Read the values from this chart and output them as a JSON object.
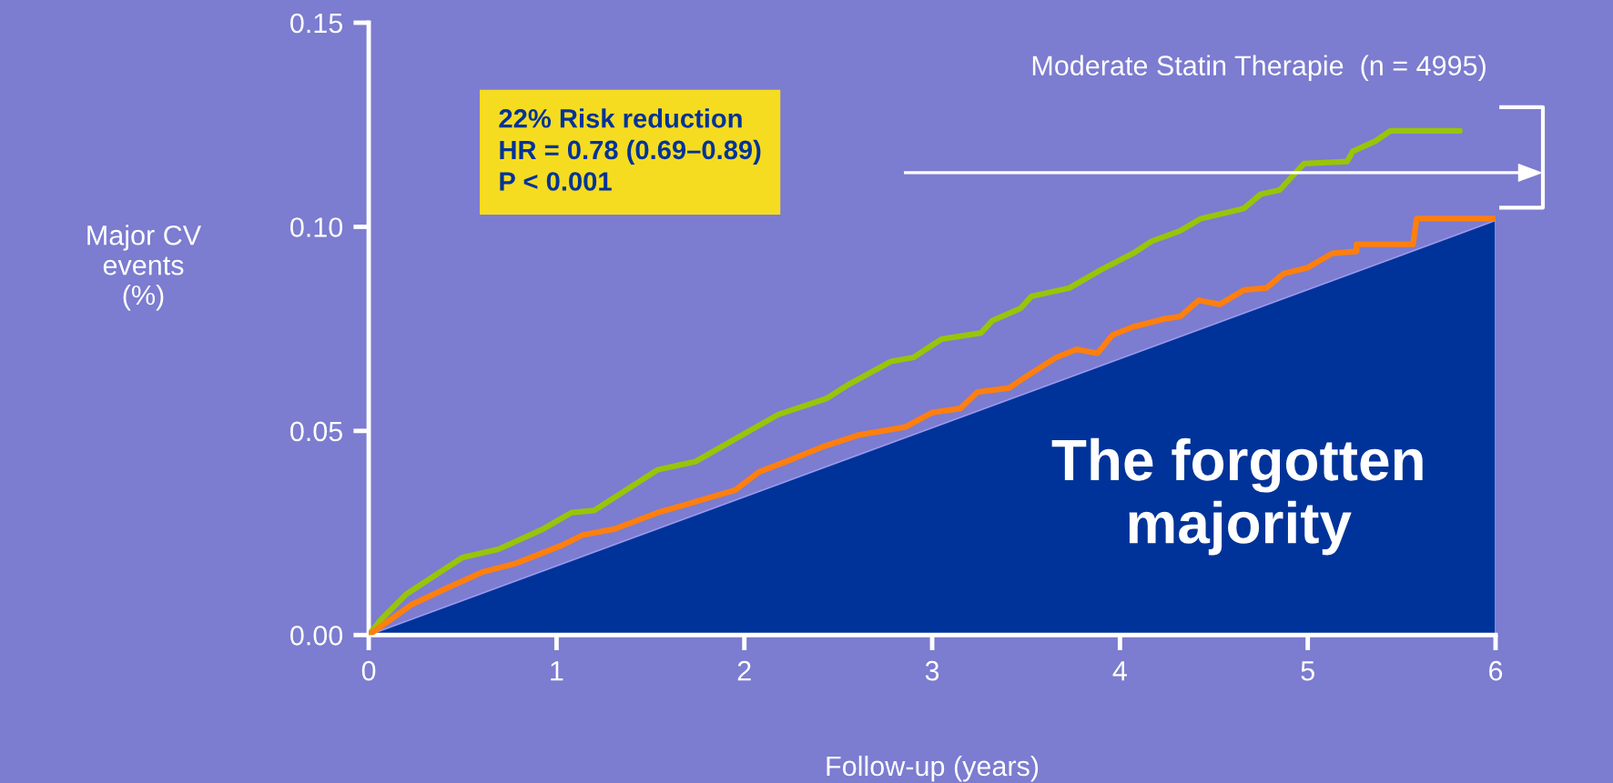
{
  "chart_data": {
    "type": "line",
    "xlabel": "Follow-up (years)",
    "ylabel": "Major CV\nevents\n(%)",
    "annotations": [
      "22% Risk reduction\nHR = 0.78 (0.69–0.89)\nP < 0.001",
      "The forgotten\nmajority"
    ],
    "xlim": [
      0,
      6
    ],
    "xticks": [
      0,
      1,
      2,
      3,
      4,
      5,
      6
    ],
    "ylim": [
      0,
      0.15
    ],
    "yticks": [
      {
        "value": 0,
        "label": "0.00"
      },
      {
        "value": 0.05,
        "label": "0.05"
      },
      {
        "value": 0.1,
        "label": "0.10"
      },
      {
        "value": 0.15,
        "label": "0.15"
      }
    ],
    "grid": false,
    "legend": false,
    "marker": "none",
    "line_style": "solid",
    "series": [
      {
        "name": "Moderate Statin Therapie  (n = 4995)",
        "color": "#99c409",
        "x": [
          0,
          0.06,
          0.2,
          0.5,
          0.69,
          0.93,
          1.08,
          1.2,
          1.37,
          1.54,
          1.74,
          1.97,
          2.18,
          2.44,
          2.56,
          2.78,
          2.9,
          3.05,
          3.26,
          3.32,
          3.47,
          3.53,
          3.73,
          3.9,
          4.07,
          4.17,
          4.32,
          4.43,
          4.66,
          4.75,
          4.85,
          4.98,
          5.21,
          5.24,
          5.36,
          5.44,
          5.81
        ],
        "values": [
          0,
          0.0035,
          0.01,
          0.019,
          0.021,
          0.026,
          0.03,
          0.0305,
          0.0355,
          0.0405,
          0.0425,
          0.0485,
          0.054,
          0.058,
          0.0615,
          0.067,
          0.068,
          0.0725,
          0.074,
          0.077,
          0.08,
          0.083,
          0.085,
          0.0895,
          0.0935,
          0.0965,
          0.099,
          0.102,
          0.1045,
          0.108,
          0.109,
          0.1155,
          0.116,
          0.1185,
          0.121,
          0.1235,
          0.1235
        ]
      },
      {
        "color": "#ff7f0e",
        "x": [
          0,
          0.23,
          0.44,
          0.61,
          0.78,
          1.03,
          1.14,
          1.31,
          1.54,
          1.69,
          1.95,
          2.08,
          2.25,
          2.41,
          2.61,
          2.86,
          3.0,
          3.15,
          3.24,
          3.41,
          3.49,
          3.66,
          3.77,
          3.88,
          3.96,
          4.07,
          4.24,
          4.32,
          4.42,
          4.53,
          4.66,
          4.78,
          4.87,
          5.0,
          5.13,
          5.26,
          5.26,
          5.56,
          5.58,
          6.0
        ],
        "values": [
          0,
          0.0075,
          0.012,
          0.0155,
          0.0175,
          0.022,
          0.0245,
          0.026,
          0.03,
          0.032,
          0.0355,
          0.04,
          0.043,
          0.046,
          0.049,
          0.051,
          0.0545,
          0.0555,
          0.0595,
          0.0605,
          0.063,
          0.068,
          0.07,
          0.069,
          0.0735,
          0.0755,
          0.0775,
          0.078,
          0.082,
          0.081,
          0.0845,
          0.085,
          0.0885,
          0.09,
          0.0935,
          0.094,
          0.0957,
          0.0957,
          0.102,
          0.102
        ]
      }
    ]
  }
}
